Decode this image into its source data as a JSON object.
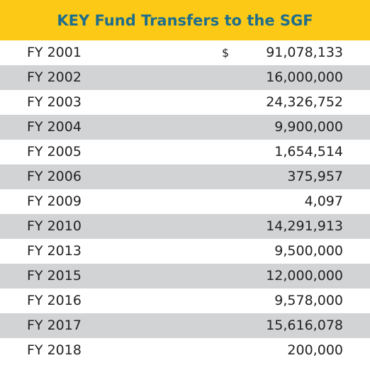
{
  "header": {
    "title": "KEY Fund Transfers to the SGF"
  },
  "table": {
    "rows": [
      {
        "label": "FY 2001",
        "currency": "$",
        "value": "91,078,133"
      },
      {
        "label": "FY 2002",
        "value": "16,000,000"
      },
      {
        "label": "FY 2003",
        "value": "24,326,752"
      },
      {
        "label": "FY 2004",
        "value": "9,900,000"
      },
      {
        "label": "FY 2005",
        "value": "1,654,514"
      },
      {
        "label": "FY 2006",
        "value": "375,957"
      },
      {
        "label": "FY 2009",
        "value": "4,097"
      },
      {
        "label": "FY 2010",
        "value": "14,291,913"
      },
      {
        "label": "FY 2013",
        "value": "9,500,000"
      },
      {
        "label": "FY 2015",
        "value": "12,000,000"
      },
      {
        "label": "FY 2016",
        "value": "9,578,000"
      },
      {
        "label": "FY 2017",
        "value": "15,616,078"
      },
      {
        "label": "FY 2018",
        "value": "200,000"
      }
    ]
  }
}
